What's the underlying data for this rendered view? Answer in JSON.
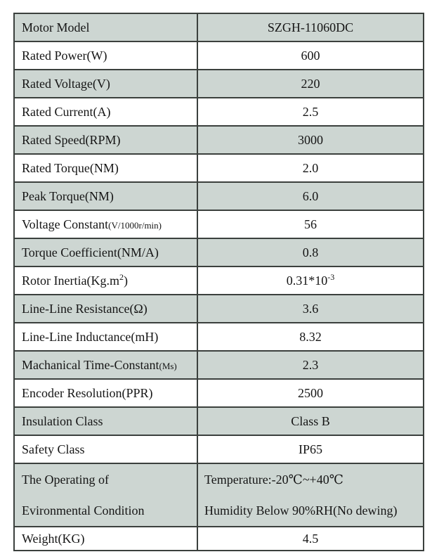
{
  "table": {
    "colors": {
      "shaded_row": "#cdd6d2",
      "border": "#3b403d",
      "text": "#151515",
      "background": "#ffffff"
    },
    "rows": [
      {
        "label": "Motor Model",
        "value": "SZGH-11060DC",
        "shaded": true
      },
      {
        "label": "Rated Power(W)",
        "value": "600",
        "shaded": false
      },
      {
        "label": "Rated Voltage(V)",
        "value": "220",
        "shaded": true
      },
      {
        "label": "Rated Current(A)",
        "value": "2.5",
        "shaded": false
      },
      {
        "label": "Rated Speed(RPM)",
        "value": "3000",
        "shaded": true
      },
      {
        "label": "Rated Torque(NM)",
        "value": "2.0",
        "shaded": false
      },
      {
        "label": "Peak Torque(NM)",
        "value": "6.0",
        "shaded": true
      },
      {
        "label": "Voltage Constant",
        "label_small": "(V/1000r/min)",
        "value": "56",
        "shaded": false
      },
      {
        "label": "Torque Coefficient(NM/A)",
        "value": "0.8",
        "shaded": true
      },
      {
        "label": "Rotor Inertia(Kg.m",
        "label_sup": "2",
        "label_tail": ")",
        "value": "0.31*10",
        "value_sup": "-3",
        "shaded": false
      },
      {
        "label": "Line-Line Resistance(Ω)",
        "value": "3.6",
        "shaded": true
      },
      {
        "label": "Line-Line Inductance(mH)",
        "value": "8.32",
        "shaded": false
      },
      {
        "label": "Machanical Time-Constant",
        "label_small": "(Ms)",
        "value": "2.3",
        "shaded": true
      },
      {
        "label": "Encoder Resolution(PPR)",
        "value": "2500",
        "shaded": false
      },
      {
        "label": "Insulation Class",
        "value": "Class B",
        "shaded": true
      },
      {
        "label": "Safety Class",
        "value": "IP65",
        "shaded": false
      },
      {
        "label_line1": "The Operating of",
        "label_line2": "Evironmental Condition",
        "value_line1": "Temperature:-20℃~+40℃",
        "value_line2": "Humidity Below 90%RH(No dewing)",
        "shaded": true
      },
      {
        "label": "Weight(KG)",
        "value": "4.5",
        "shaded": false
      }
    ]
  }
}
